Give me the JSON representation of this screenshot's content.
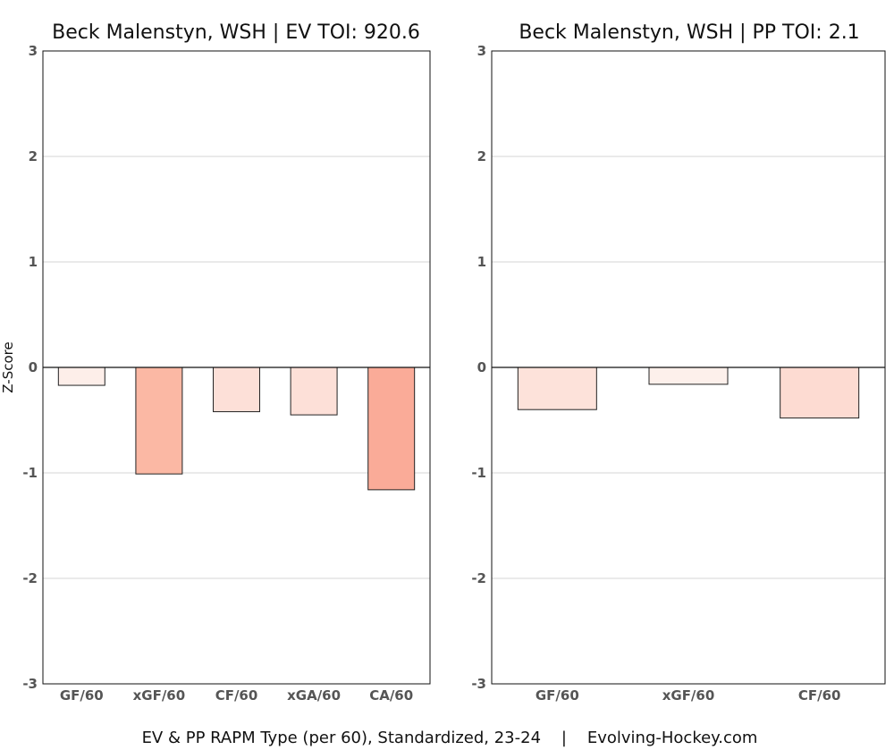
{
  "ylabel": "Z-Score",
  "caption": "EV & PP RAPM Type (per 60), Standardized, 23-24    |    Evolving-Hockey.com",
  "chart_data": [
    {
      "type": "bar",
      "title": "Beck Malenstyn, WSH  |  EV TOI: 920.6",
      "categories": [
        "GF/60",
        "xGF/60",
        "CF/60",
        "xGA/60",
        "CA/60"
      ],
      "values": [
        -0.17,
        -1.01,
        -0.42,
        -0.45,
        -1.16
      ],
      "colors": [
        "#fdeee9",
        "#fbb8a4",
        "#fde0d8",
        "#fde0d8",
        "#faab98"
      ],
      "ylim": [
        -3,
        3
      ],
      "yticks": [
        3,
        2,
        1,
        0,
        -1,
        -2,
        -3
      ],
      "grid": true
    },
    {
      "type": "bar",
      "title": "Beck Malenstyn, WSH  |  PP TOI: 2.1",
      "categories": [
        "GF/60",
        "xGF/60",
        "CF/60"
      ],
      "values": [
        -0.4,
        -0.16,
        -0.48
      ],
      "colors": [
        "#fde2da",
        "#fdf0eb",
        "#fddbd2"
      ],
      "ylim": [
        -3,
        3
      ],
      "yticks": [
        3,
        2,
        1,
        0,
        -1,
        -2,
        -3
      ],
      "grid": true
    }
  ]
}
